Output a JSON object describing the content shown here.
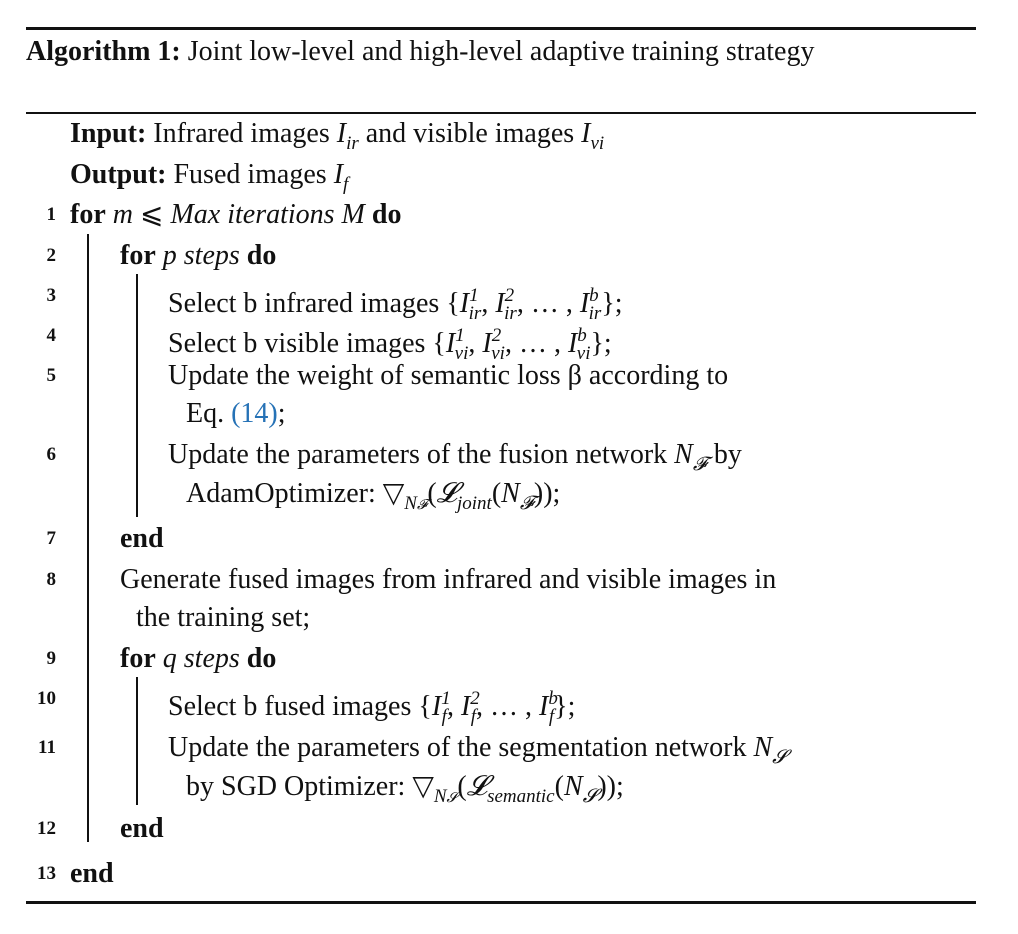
{
  "algorithm": {
    "label": "Algorithm 1:",
    "title": "Joint low-level and high-level adaptive training strategy"
  },
  "io": {
    "input_label": "Input:",
    "input_text": "Infrared images",
    "input_and": "and visible images",
    "output_label": "Output:",
    "output_text": "Fused images"
  },
  "line_numbers": [
    "1",
    "2",
    "3",
    "4",
    "5",
    "6",
    "7",
    "8",
    "9",
    "10",
    "11",
    "12",
    "13"
  ],
  "keywords": {
    "for": "for",
    "do": "do",
    "end": "end"
  },
  "lines": {
    "l1_cond": "Max iterations M",
    "l2_cond": "p steps",
    "l3_text": "Select b infrared images",
    "l4_text": "Select b visible images",
    "l5_text": "Update the weight of semantic loss β according to",
    "l5_cont": "Eq.",
    "l5_ref": "(14)",
    "l5_end": ";",
    "l6_text": "Update the parameters of the fusion network",
    "l6_by": "by",
    "l6_cont": "AdamOptimizer:",
    "l8_text": "Generate fused images from infrared and visible images in",
    "l8_cont": "the training set;",
    "l9_cond": "q steps",
    "l10_text": "Select b fused images",
    "l11_text": "Update the parameters of the segmentation network",
    "l11_cont": "by SGD Optimizer:"
  }
}
